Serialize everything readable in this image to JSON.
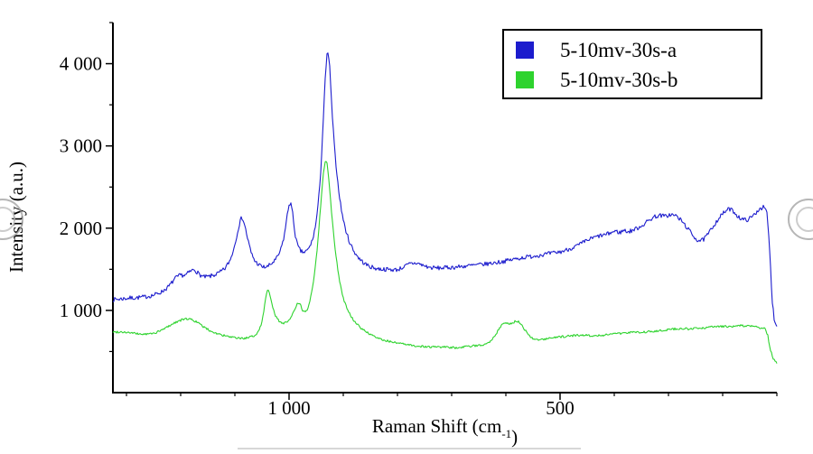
{
  "chart_data": {
    "type": "line",
    "title": "",
    "ylabel": "Intensity (a.u.)",
    "xlabel": {
      "main": "Raman Shift (cm",
      "sup": "-1",
      "close": ")"
    },
    "x_axis": {
      "reversed": true,
      "left_value": 1325,
      "right_value": 100,
      "major_ticks": [
        1000,
        500
      ],
      "major_tick_labels": [
        "1 000",
        "500"
      ],
      "minor_ticks": [
        1300,
        1200,
        1100,
        900,
        800,
        700,
        600,
        400,
        300,
        200,
        100
      ]
    },
    "y_axis": {
      "min": 0,
      "max": 4500,
      "major_ticks": [
        1000,
        2000,
        3000,
        4000
      ],
      "major_tick_labels": [
        "1 000",
        "2 000",
        "3 000",
        "4 000"
      ],
      "minor_ticks": [
        500,
        1500,
        2500,
        3500,
        4500
      ]
    },
    "legend": {
      "position": "top-right",
      "entries": [
        {
          "label": "5-10mv-30s-a",
          "color": "#1c1ccd"
        },
        {
          "label": "5-10mv-30s-b",
          "color": "#2ed32e"
        }
      ]
    },
    "series": [
      {
        "name": "5-10mv-30s-a",
        "color": "#1c1ccd",
        "noise": 26,
        "seed": 7,
        "points": [
          [
            1325,
            1130
          ],
          [
            1310,
            1140
          ],
          [
            1295,
            1150
          ],
          [
            1280,
            1155
          ],
          [
            1265,
            1165
          ],
          [
            1250,
            1185
          ],
          [
            1235,
            1225
          ],
          [
            1222,
            1290
          ],
          [
            1210,
            1390
          ],
          [
            1200,
            1430
          ],
          [
            1192,
            1425
          ],
          [
            1183,
            1470
          ],
          [
            1175,
            1500
          ],
          [
            1166,
            1440
          ],
          [
            1158,
            1405
          ],
          [
            1148,
            1410
          ],
          [
            1138,
            1430
          ],
          [
            1128,
            1460
          ],
          [
            1118,
            1510
          ],
          [
            1108,
            1620
          ],
          [
            1100,
            1800
          ],
          [
            1094,
            1990
          ],
          [
            1089,
            2110
          ],
          [
            1086,
            2130
          ],
          [
            1082,
            2040
          ],
          [
            1076,
            1860
          ],
          [
            1070,
            1700
          ],
          [
            1063,
            1600
          ],
          [
            1056,
            1555
          ],
          [
            1048,
            1525
          ],
          [
            1040,
            1530
          ],
          [
            1032,
            1570
          ],
          [
            1024,
            1620
          ],
          [
            1016,
            1720
          ],
          [
            1009,
            1900
          ],
          [
            1004,
            2130
          ],
          [
            1000,
            2290
          ],
          [
            997,
            2310
          ],
          [
            993,
            2160
          ],
          [
            989,
            1930
          ],
          [
            984,
            1780
          ],
          [
            978,
            1715
          ],
          [
            971,
            1705
          ],
          [
            964,
            1745
          ],
          [
            957,
            1850
          ],
          [
            951,
            2030
          ],
          [
            946,
            2300
          ],
          [
            941,
            2750
          ],
          [
            937,
            3300
          ],
          [
            933,
            3850
          ],
          [
            930,
            4100
          ],
          [
            928,
            4150
          ],
          [
            925,
            3950
          ],
          [
            921,
            3450
          ],
          [
            916,
            2950
          ],
          [
            910,
            2550
          ],
          [
            904,
            2240
          ],
          [
            897,
            2010
          ],
          [
            889,
            1840
          ],
          [
            880,
            1715
          ],
          [
            870,
            1625
          ],
          [
            860,
            1565
          ],
          [
            848,
            1525
          ],
          [
            836,
            1505
          ],
          [
            824,
            1500
          ],
          [
            812,
            1495
          ],
          [
            800,
            1495
          ],
          [
            788,
            1530
          ],
          [
            776,
            1570
          ],
          [
            764,
            1575
          ],
          [
            752,
            1545
          ],
          [
            740,
            1520
          ],
          [
            725,
            1515
          ],
          [
            710,
            1520
          ],
          [
            695,
            1525
          ],
          [
            680,
            1535
          ],
          [
            665,
            1545
          ],
          [
            650,
            1555
          ],
          [
            635,
            1565
          ],
          [
            620,
            1580
          ],
          [
            605,
            1595
          ],
          [
            590,
            1615
          ],
          [
            575,
            1635
          ],
          [
            560,
            1650
          ],
          [
            545,
            1665
          ],
          [
            530,
            1680
          ],
          [
            515,
            1695
          ],
          [
            500,
            1710
          ],
          [
            488,
            1735
          ],
          [
            476,
            1765
          ],
          [
            464,
            1800
          ],
          [
            452,
            1845
          ],
          [
            440,
            1880
          ],
          [
            428,
            1905
          ],
          [
            416,
            1920
          ],
          [
            406,
            1945
          ],
          [
            398,
            1965
          ],
          [
            390,
            1945
          ],
          [
            382,
            1975
          ],
          [
            374,
            1955
          ],
          [
            366,
            1975
          ],
          [
            356,
            2005
          ],
          [
            346,
            2045
          ],
          [
            336,
            2095
          ],
          [
            326,
            2140
          ],
          [
            316,
            2155
          ],
          [
            306,
            2145
          ],
          [
            296,
            2165
          ],
          [
            286,
            2150
          ],
          [
            276,
            2090
          ],
          [
            266,
            2010
          ],
          [
            256,
            1920
          ],
          [
            246,
            1850
          ],
          [
            236,
            1855
          ],
          [
            226,
            1935
          ],
          [
            216,
            2040
          ],
          [
            206,
            2130
          ],
          [
            196,
            2200
          ],
          [
            188,
            2235
          ],
          [
            180,
            2205
          ],
          [
            172,
            2145
          ],
          [
            164,
            2105
          ],
          [
            156,
            2100
          ],
          [
            148,
            2125
          ],
          [
            140,
            2175
          ],
          [
            132,
            2240
          ],
          [
            124,
            2255
          ],
          [
            118,
            2180
          ],
          [
            113,
            1700
          ],
          [
            109,
            1150
          ],
          [
            105,
            900
          ],
          [
            101,
            830
          ],
          [
            100,
            820
          ]
        ]
      },
      {
        "name": "5-10mv-30s-b",
        "color": "#2ed32e",
        "noise": 13,
        "seed": 99,
        "points": [
          [
            1325,
            735
          ],
          [
            1310,
            740
          ],
          [
            1295,
            730
          ],
          [
            1280,
            715
          ],
          [
            1265,
            710
          ],
          [
            1250,
            720
          ],
          [
            1236,
            755
          ],
          [
            1222,
            810
          ],
          [
            1208,
            860
          ],
          [
            1196,
            890
          ],
          [
            1184,
            900
          ],
          [
            1172,
            865
          ],
          [
            1160,
            810
          ],
          [
            1148,
            760
          ],
          [
            1136,
            725
          ],
          [
            1124,
            700
          ],
          [
            1112,
            680
          ],
          [
            1100,
            665
          ],
          [
            1088,
            660
          ],
          [
            1076,
            665
          ],
          [
            1066,
            685
          ],
          [
            1058,
            730
          ],
          [
            1051,
            830
          ],
          [
            1046,
            1020
          ],
          [
            1042,
            1200
          ],
          [
            1039,
            1270
          ],
          [
            1036,
            1220
          ],
          [
            1031,
            1050
          ],
          [
            1025,
            930
          ],
          [
            1018,
            865
          ],
          [
            1011,
            845
          ],
          [
            1004,
            860
          ],
          [
            997,
            905
          ],
          [
            990,
            1000
          ],
          [
            984,
            1090
          ],
          [
            980,
            1085
          ],
          [
            975,
            990
          ],
          [
            969,
            975
          ],
          [
            962,
            1090
          ],
          [
            955,
            1350
          ],
          [
            948,
            1750
          ],
          [
            942,
            2250
          ],
          [
            937,
            2650
          ],
          [
            933,
            2830
          ],
          [
            930,
            2790
          ],
          [
            926,
            2550
          ],
          [
            921,
            2150
          ],
          [
            915,
            1750
          ],
          [
            908,
            1400
          ],
          [
            900,
            1150
          ],
          [
            891,
            985
          ],
          [
            881,
            880
          ],
          [
            870,
            800
          ],
          [
            858,
            740
          ],
          [
            846,
            690
          ],
          [
            834,
            655
          ],
          [
            822,
            635
          ],
          [
            810,
            615
          ],
          [
            798,
            600
          ],
          [
            786,
            585
          ],
          [
            774,
            575
          ],
          [
            762,
            565
          ],
          [
            750,
            560
          ],
          [
            738,
            555
          ],
          [
            726,
            555
          ],
          [
            714,
            555
          ],
          [
            702,
            545
          ],
          [
            690,
            548
          ],
          [
            678,
            555
          ],
          [
            666,
            562
          ],
          [
            654,
            572
          ],
          [
            642,
            585
          ],
          [
            631,
            615
          ],
          [
            621,
            680
          ],
          [
            613,
            770
          ],
          [
            606,
            840
          ],
          [
            600,
            855
          ],
          [
            594,
            830
          ],
          [
            588,
            845
          ],
          [
            582,
            870
          ],
          [
            576,
            865
          ],
          [
            570,
            815
          ],
          [
            563,
            745
          ],
          [
            556,
            690
          ],
          [
            549,
            655
          ],
          [
            542,
            640
          ],
          [
            532,
            645
          ],
          [
            522,
            655
          ],
          [
            512,
            665
          ],
          [
            502,
            675
          ],
          [
            490,
            685
          ],
          [
            478,
            692
          ],
          [
            466,
            698
          ],
          [
            454,
            700
          ],
          [
            442,
            692
          ],
          [
            430,
            695
          ],
          [
            418,
            702
          ],
          [
            406,
            710
          ],
          [
            394,
            718
          ],
          [
            382,
            726
          ],
          [
            370,
            736
          ],
          [
            358,
            730
          ],
          [
            346,
            736
          ],
          [
            334,
            744
          ],
          [
            322,
            752
          ],
          [
            310,
            760
          ],
          [
            298,
            768
          ],
          [
            286,
            775
          ],
          [
            274,
            780
          ],
          [
            262,
            772
          ],
          [
            250,
            778
          ],
          [
            238,
            786
          ],
          [
            226,
            794
          ],
          [
            214,
            800
          ],
          [
            202,
            808
          ],
          [
            190,
            800
          ],
          [
            178,
            806
          ],
          [
            166,
            815
          ],
          [
            154,
            810
          ],
          [
            142,
            800
          ],
          [
            130,
            788
          ],
          [
            122,
            778
          ],
          [
            117,
            705
          ],
          [
            112,
            520
          ],
          [
            107,
            415
          ],
          [
            103,
            375
          ],
          [
            100,
            360
          ]
        ]
      }
    ]
  },
  "decorations": {
    "watermark_left": "circular-stamp",
    "watermark_right": "circular-stamp",
    "watermark_underline": "faint-line"
  }
}
